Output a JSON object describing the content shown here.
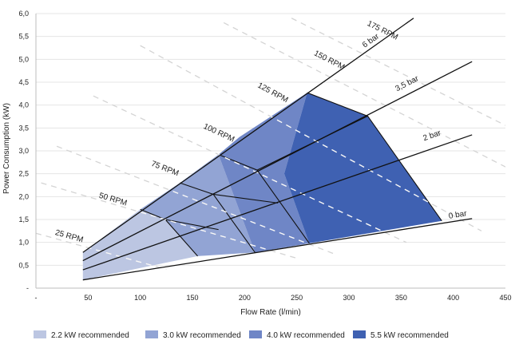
{
  "chart_data": {
    "type": "area",
    "title": "",
    "xlabel": "Flow Rate (l/min)",
    "ylabel": "Power Consumption (kW)",
    "xlim": [
      0,
      450
    ],
    "ylim": [
      0,
      6
    ],
    "x_ticks": [
      "-",
      "50",
      "100",
      "150",
      "200",
      "250",
      "300",
      "350",
      "400",
      "450"
    ],
    "y_ticks": [
      "-",
      "0,5",
      "1,0",
      "1,5",
      "2,0",
      "2,5",
      "3,0",
      "3,5",
      "4,0",
      "4,5",
      "5,0",
      "5,5",
      "6,0"
    ],
    "grid": true,
    "legend_position": "bottom",
    "pressure_lines": [
      {
        "name": "0 bar",
        "points": [
          [
            45,
            0.18
          ],
          [
            418,
            1.52
          ]
        ]
      },
      {
        "name": "2 bar",
        "points": [
          [
            45,
            0.4
          ],
          [
            418,
            3.35
          ]
        ]
      },
      {
        "name": "3,5 bar",
        "points": [
          [
            45,
            0.6
          ],
          [
            418,
            4.95
          ]
        ]
      },
      {
        "name": "6 bar",
        "points": [
          [
            45,
            0.78
          ],
          [
            362,
            5.9
          ]
        ]
      }
    ],
    "speed_lines": [
      {
        "name": "25 RPM",
        "points": [
          [
            0,
            1.2
          ],
          [
            125,
            0.41
          ]
        ]
      },
      {
        "name": "50 RPM",
        "points": [
          [
            5,
            2.3
          ],
          [
            249,
            0.66
          ]
        ]
      },
      {
        "name": "75 RPM",
        "points": [
          [
            20,
            3.1
          ],
          [
            288,
            0.73
          ]
        ]
      },
      {
        "name": "100 RPM",
        "points": [
          [
            55,
            4.2
          ],
          [
            355,
            1.0
          ]
        ]
      },
      {
        "name": "125 RPM",
        "points": [
          [
            100,
            5.3
          ],
          [
            427,
            1.25
          ]
        ]
      },
      {
        "name": "150 RPM",
        "points": [
          [
            180,
            5.8
          ],
          [
            480,
            2.3
          ]
        ]
      },
      {
        "name": "175 RPM",
        "points": [
          [
            245,
            5.9
          ],
          [
            560,
            2.3
          ]
        ]
      }
    ],
    "regions": [
      {
        "name": "2.2 kW recommended",
        "color": "#bcc6e2",
        "polygon": [
          [
            45,
            0.18
          ],
          [
            45,
            0.78
          ],
          [
            100,
            1.72
          ],
          [
            124,
            1.5
          ],
          [
            155,
            0.7
          ]
        ]
      },
      {
        "name": "3.0 kW recommended",
        "color": "#92a4d4",
        "polygon": [
          [
            155,
            0.7
          ],
          [
            124,
            1.5
          ],
          [
            100,
            1.72
          ],
          [
            138,
            2.3
          ],
          [
            175,
            2.92
          ],
          [
            210,
            0.78
          ]
        ]
      },
      {
        "name": "4.0 kW recommended",
        "color": "#6f86c6",
        "polygon": [
          [
            210,
            0.78
          ],
          [
            175,
            2.92
          ],
          [
            195,
            3.3
          ],
          [
            260,
            4.27
          ],
          [
            238,
            2.5
          ],
          [
            262,
            0.98
          ]
        ]
      },
      {
        "name": "5.5 kW recommended",
        "color": "#3f61b2",
        "polygon": [
          [
            262,
            0.98
          ],
          [
            238,
            2.5
          ],
          [
            260,
            4.27
          ],
          [
            318,
            3.76
          ],
          [
            389,
            1.47
          ]
        ]
      }
    ],
    "boundaries": [
      [
        [
          100,
          1.72
        ],
        [
          124,
          1.5
        ],
        [
          155,
          0.7
        ]
      ],
      [
        [
          124,
          1.5
        ],
        [
          175,
          1.28
        ]
      ],
      [
        [
          138,
          2.3
        ],
        [
          170,
          2.05
        ],
        [
          210,
          0.78
        ]
      ],
      [
        [
          170,
          2.05
        ],
        [
          232,
          1.86
        ]
      ],
      [
        [
          175,
          2.92
        ],
        [
          212,
          2.58
        ],
        [
          262,
          0.98
        ]
      ],
      [
        [
          212,
          2.58
        ],
        [
          318,
          3.76
        ]
      ]
    ],
    "series_label_positions": {
      "0 bar": [
        [
          396,
          1.52
        ]
      ],
      "2 bar": [
        [
          372,
          3.22
        ]
      ],
      "3,5 bar": [
        [
          346,
          4.3
        ]
      ],
      "6 bar": [
        [
          315,
          5.25
        ]
      ]
    },
    "speed_label_positions": {
      "25 RPM": [
        [
          18,
          1.17
        ]
      ],
      "50 RPM": [
        [
          60,
          1.98
        ]
      ],
      "75 RPM": [
        [
          110,
          2.68
        ]
      ],
      "100 RPM": [
        [
          160,
          3.5
        ]
      ],
      "125 RPM": [
        [
          212,
          4.4
        ]
      ],
      "150 RPM": [
        [
          266,
          5.1
        ]
      ],
      "175 RPM": [
        [
          317,
          5.75
        ]
      ]
    }
  }
}
